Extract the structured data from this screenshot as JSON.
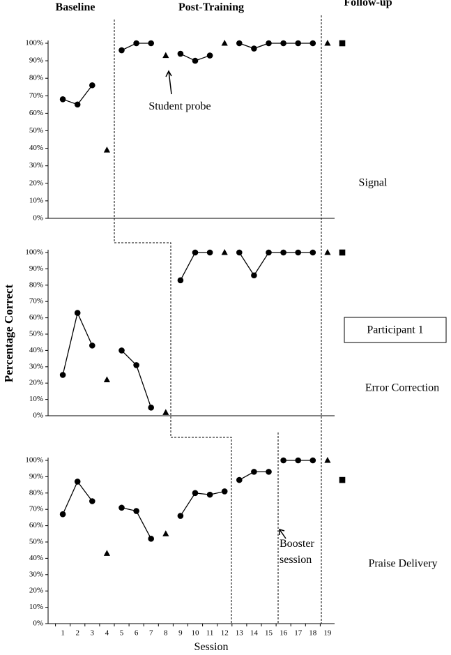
{
  "figure": {
    "phase_labels": [
      "Baseline",
      "Post-Training",
      "Follow-up"
    ],
    "y_label": "Percentage Correct",
    "x_label": "Session",
    "participant": "Participant 1"
  },
  "chart_data": [
    {
      "type": "line",
      "label": "Signal",
      "x": [
        1,
        2,
        3,
        4,
        5,
        6,
        7,
        8,
        9,
        10,
        11,
        12,
        13,
        14,
        15,
        16,
        17,
        18,
        19,
        20
      ],
      "xlim": [
        0,
        20
      ],
      "ylim": [
        0,
        100
      ],
      "yticks": [
        {
          "value": 0,
          "label": "0%"
        },
        {
          "value": 10,
          "label": "10%"
        },
        {
          "value": 20,
          "label": "20%"
        },
        {
          "value": 30,
          "label": "30%"
        },
        {
          "value": 40,
          "label": "40%"
        },
        {
          "value": 50,
          "label": "50%"
        },
        {
          "value": 60,
          "label": "60%"
        },
        {
          "value": 70,
          "label": "70%"
        },
        {
          "value": 80,
          "label": "80%"
        },
        {
          "value": 90,
          "label": "90%"
        },
        {
          "value": 100,
          "label": "100%"
        }
      ],
      "series": [
        {
          "marker": "circle",
          "line": true,
          "color": "#000000",
          "values": [
            68,
            65,
            76,
            null,
            96,
            100,
            100,
            null,
            94,
            90,
            93,
            null,
            100,
            97,
            100,
            100,
            100,
            100,
            null,
            null
          ]
        },
        {
          "marker": "triangle",
          "line": false,
          "color": "#000000",
          "values": [
            null,
            null,
            null,
            39,
            null,
            null,
            null,
            93,
            null,
            null,
            null,
            100,
            null,
            null,
            null,
            null,
            null,
            null,
            100,
            null
          ]
        },
        {
          "marker": "square",
          "line": false,
          "color": "#000000",
          "values": [
            null,
            null,
            null,
            null,
            null,
            null,
            null,
            null,
            null,
            null,
            null,
            null,
            null,
            null,
            null,
            null,
            null,
            null,
            null,
            100
          ]
        }
      ],
      "annotation": "Student probe"
    },
    {
      "type": "line",
      "label": "Error Correction",
      "x": [
        1,
        2,
        3,
        4,
        5,
        6,
        7,
        8,
        9,
        10,
        11,
        12,
        13,
        14,
        15,
        16,
        17,
        18,
        19,
        20
      ],
      "xlim": [
        0,
        20
      ],
      "ylim": [
        0,
        100
      ],
      "yticks": [
        {
          "value": 0,
          "label": "0%"
        },
        {
          "value": 10,
          "label": "10%"
        },
        {
          "value": 20,
          "label": "20%"
        },
        {
          "value": 30,
          "label": "30%"
        },
        {
          "value": 40,
          "label": "40%"
        },
        {
          "value": 50,
          "label": "50%"
        },
        {
          "value": 60,
          "label": "60%"
        },
        {
          "value": 70,
          "label": "70%"
        },
        {
          "value": 80,
          "label": "80%"
        },
        {
          "value": 90,
          "label": "90%"
        },
        {
          "value": 100,
          "label": "100%"
        }
      ],
      "series": [
        {
          "marker": "circle",
          "line": true,
          "color": "#000000",
          "values": [
            25,
            63,
            43,
            null,
            40,
            31,
            5,
            null,
            83,
            100,
            100,
            null,
            100,
            86,
            100,
            100,
            100,
            100,
            null,
            null
          ]
        },
        {
          "marker": "triangle",
          "line": false,
          "color": "#000000",
          "values": [
            null,
            null,
            null,
            22,
            null,
            null,
            null,
            2,
            null,
            null,
            null,
            100,
            null,
            null,
            null,
            null,
            null,
            null,
            100,
            null
          ]
        },
        {
          "marker": "square",
          "line": false,
          "color": "#000000",
          "values": [
            null,
            null,
            null,
            null,
            null,
            null,
            null,
            null,
            null,
            null,
            null,
            null,
            null,
            null,
            null,
            null,
            null,
            null,
            null,
            100
          ]
        }
      ]
    },
    {
      "type": "line",
      "label": "Praise Delivery",
      "x": [
        1,
        2,
        3,
        4,
        5,
        6,
        7,
        8,
        9,
        10,
        11,
        12,
        13,
        14,
        15,
        16,
        17,
        18,
        19,
        20
      ],
      "xlim": [
        0,
        20
      ],
      "xticks": [
        1,
        2,
        3,
        4,
        5,
        6,
        7,
        8,
        9,
        10,
        11,
        12,
        13,
        14,
        15,
        16,
        17,
        18,
        19
      ],
      "ylim": [
        0,
        100
      ],
      "yticks": [
        {
          "value": 0,
          "label": "0%"
        },
        {
          "value": 10,
          "label": "10%"
        },
        {
          "value": 20,
          "label": "20%"
        },
        {
          "value": 30,
          "label": "30%"
        },
        {
          "value": 40,
          "label": "40%"
        },
        {
          "value": 50,
          "label": "50%"
        },
        {
          "value": 60,
          "label": "60%"
        },
        {
          "value": 70,
          "label": "70%"
        },
        {
          "value": 80,
          "label": "80%"
        },
        {
          "value": 90,
          "label": "90%"
        },
        {
          "value": 100,
          "label": "100%"
        }
      ],
      "series": [
        {
          "marker": "circle",
          "line": true,
          "color": "#000000",
          "values": [
            67,
            87,
            75,
            null,
            71,
            69,
            52,
            null,
            66,
            80,
            79,
            81,
            null,
            null,
            null,
            null,
            null,
            null,
            null,
            null
          ]
        },
        {
          "marker": "circle",
          "line": true,
          "color": "#000000",
          "values": [
            null,
            null,
            null,
            null,
            null,
            null,
            null,
            null,
            null,
            null,
            null,
            null,
            88,
            93,
            93,
            null,
            null,
            null,
            null,
            null
          ]
        },
        {
          "marker": "circle",
          "line": true,
          "color": "#000000",
          "values": [
            null,
            null,
            null,
            null,
            null,
            null,
            null,
            null,
            null,
            null,
            null,
            null,
            null,
            null,
            null,
            100,
            100,
            100,
            null,
            null
          ]
        },
        {
          "marker": "triangle",
          "line": false,
          "color": "#000000",
          "values": [
            null,
            null,
            null,
            43,
            null,
            null,
            null,
            55,
            null,
            null,
            null,
            null,
            null,
            null,
            null,
            null,
            null,
            null,
            100,
            null
          ]
        },
        {
          "marker": "square",
          "line": false,
          "color": "#000000",
          "values": [
            null,
            null,
            null,
            null,
            null,
            null,
            null,
            null,
            null,
            null,
            null,
            null,
            null,
            null,
            null,
            null,
            null,
            null,
            null,
            88
          ]
        }
      ],
      "annotation": "Booster session"
    }
  ]
}
